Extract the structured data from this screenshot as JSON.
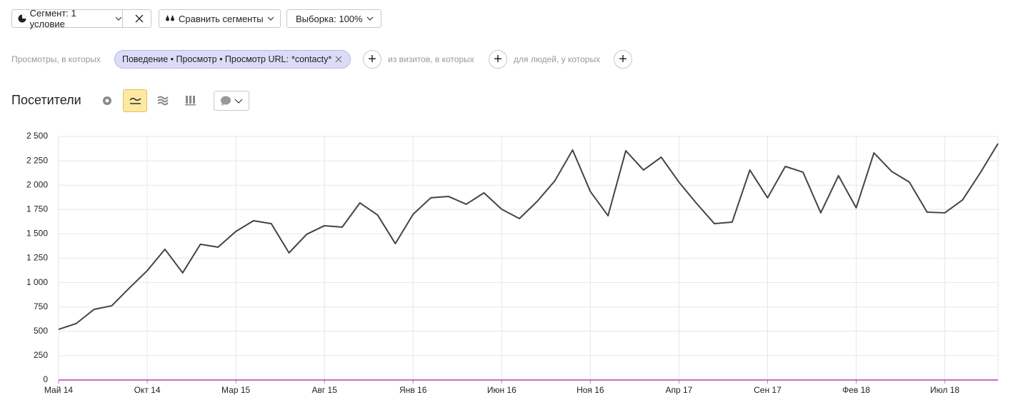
{
  "toolbar": {
    "segment": "Сегмент: 1 условие",
    "compare": "Сравнить сегменты",
    "sample": "Выборка: 100%"
  },
  "filter": {
    "views_label": "Просмотры, в которых",
    "condition": "Поведение • Просмотр • Просмотр URL:",
    "condition_value": "*contacty*",
    "visits_label": "из визитов, в которых",
    "people_label": "для людей, у которых"
  },
  "report_title": "Посетители",
  "chart_data": {
    "type": "line",
    "categories": [
      "Май 14",
      null,
      null,
      null,
      null,
      "Окт 14",
      null,
      null,
      null,
      null,
      "Мар 15",
      null,
      null,
      null,
      null,
      "Авг 15",
      null,
      null,
      null,
      null,
      "Янв 16",
      null,
      null,
      null,
      null,
      "Июн 16",
      null,
      null,
      null,
      null,
      "Ноя 16",
      null,
      null,
      null,
      null,
      "Апр 17",
      null,
      null,
      null,
      null,
      "Сен 17",
      null,
      null,
      null,
      null,
      "Фев 18",
      null,
      null,
      null,
      null,
      "Июл 18",
      null,
      null,
      null
    ],
    "values": [
      520,
      580,
      725,
      762,
      945,
      1122,
      1342,
      1100,
      1393,
      1364,
      1525,
      1635,
      1605,
      1305,
      1496,
      1584,
      1569,
      1818,
      1693,
      1400,
      1701,
      1870,
      1884,
      1804,
      1921,
      1752,
      1657,
      1833,
      2045,
      2361,
      1935,
      1686,
      2353,
      2155,
      2287,
      2031,
      1811,
      1605,
      1620,
      2155,
      1870,
      2192,
      2133,
      1716,
      2097,
      1767,
      2331,
      2141,
      2031,
      1723,
      1716,
      1848,
      2126,
      2427
    ],
    "color": "#444444",
    "ylim": [
      0,
      2500
    ],
    "yticks": [
      0,
      250,
      500,
      750,
      {
        "value": 1000,
        "label": "1 000"
      },
      {
        "value": 1250,
        "label": "1 250"
      },
      {
        "value": 1500,
        "label": "1 500"
      },
      {
        "value": 1750,
        "label": "1 750"
      },
      {
        "value": 2000,
        "label": "2 000"
      },
      {
        "value": 2250,
        "label": "2 250"
      },
      {
        "value": 2500,
        "label": "2 500"
      }
    ],
    "grid": true
  }
}
